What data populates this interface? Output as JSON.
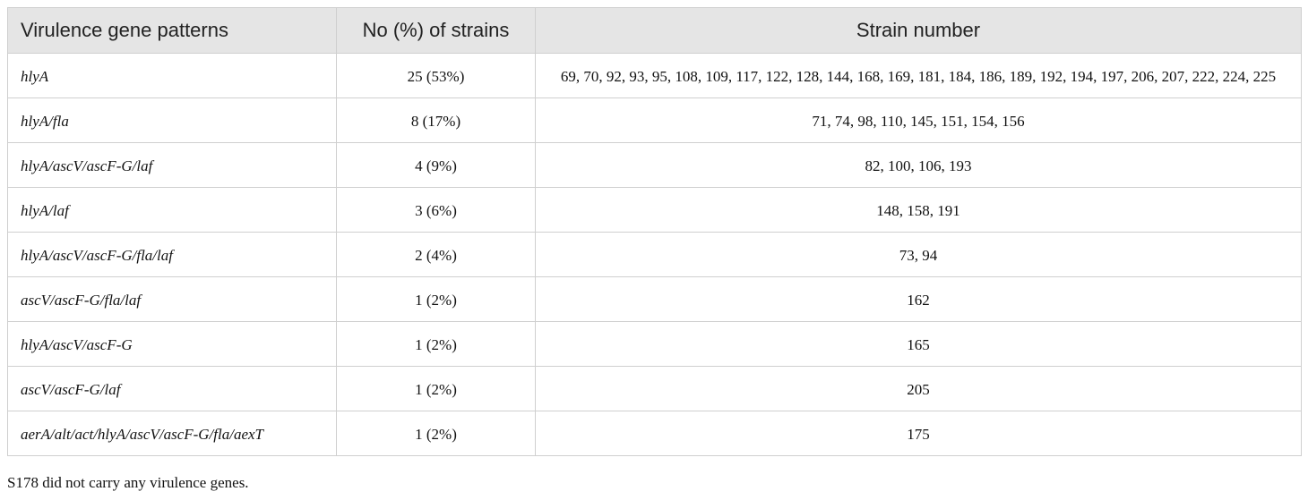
{
  "table": {
    "header": [
      "Virulence gene patterns",
      "No (%) of strains",
      "Strain number"
    ],
    "rows": [
      [
        "hlyA",
        "25 (53%)",
        "69, 70, 92, 93, 95, 108, 109, 117, 122, 128, 144, 168, 169, 181, 184, 186, 189, 192, 194, 197, 206, 207, 222, 224, 225"
      ],
      [
        "hlyA/fla",
        "8 (17%)",
        "71, 74, 98, 110, 145, 151, 154, 156"
      ],
      [
        "hlyA/ascV/ascF-G/laf",
        "4 (9%)",
        "82, 100, 106, 193"
      ],
      [
        "hlyA/laf",
        "3 (6%)",
        "148, 158, 191"
      ],
      [
        "hlyA/ascV/ascF-G/fla/laf",
        "2 (4%)",
        "73, 94"
      ],
      [
        "ascV/ascF-G/fla/laf",
        "1 (2%)",
        "162"
      ],
      [
        "hlyA/ascV/ascF-G",
        "1 (2%)",
        "165"
      ],
      [
        "ascV/ascF-G/laf",
        "1 (2%)",
        "205"
      ],
      [
        "aerA/alt/act/hlyA/ascV/ascF-G/fla/aexT",
        "1 (2%)",
        "175"
      ]
    ]
  },
  "footnote": "S178 did not carry any virulence genes."
}
